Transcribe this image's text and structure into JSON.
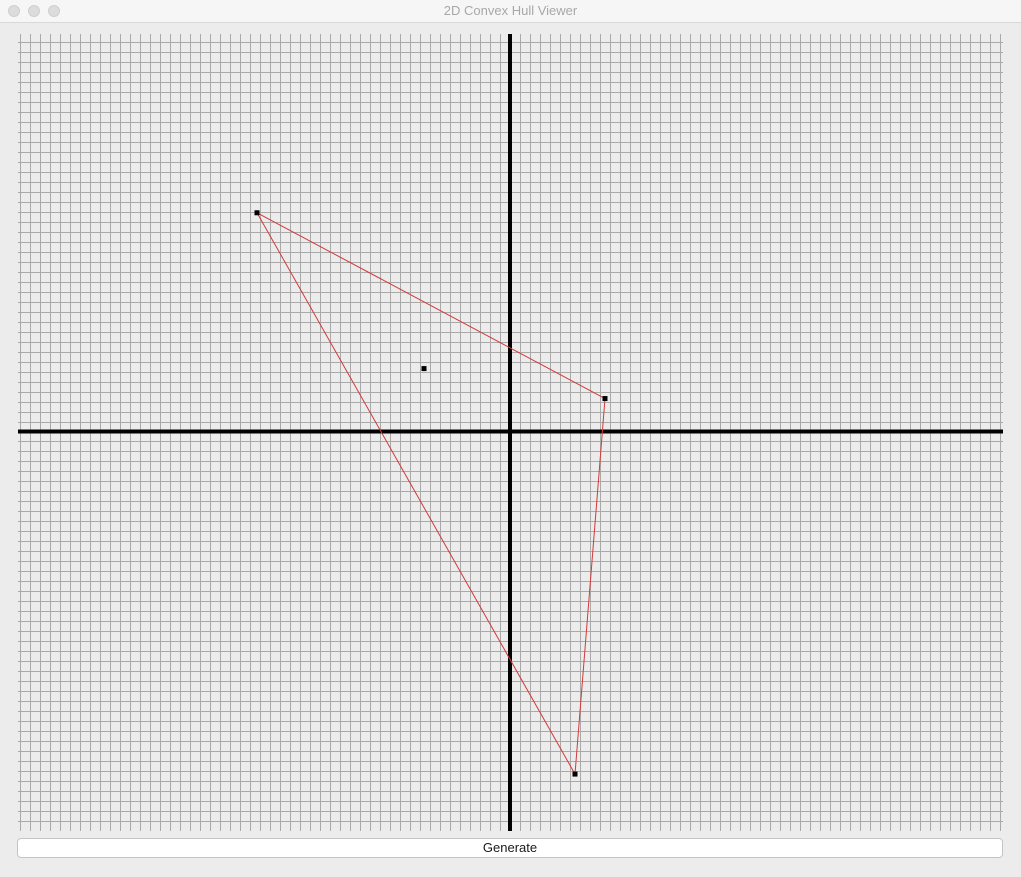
{
  "window": {
    "title": "2D Convex Hull Viewer"
  },
  "toolbar": {
    "generate_label": "Generate"
  },
  "colors": {
    "grid": "#a9a9a9",
    "axis": "#000000",
    "hull": "#d23a3a",
    "point": "#000000",
    "background": "#ececec"
  },
  "chart_data": {
    "type": "scatter",
    "title": "",
    "xlabel": "",
    "ylabel": "",
    "xlim": [
      -49.2,
      49.3
    ],
    "ylim": [
      -40,
      39.8
    ],
    "grid": true,
    "points": [
      {
        "x": -25.3,
        "y": 21.9
      },
      {
        "x": -8.6,
        "y": 6.3
      },
      {
        "x": 9.5,
        "y": 3.3
      },
      {
        "x": 6.5,
        "y": -34.3
      }
    ],
    "hull": [
      {
        "x": -25.3,
        "y": 21.9
      },
      {
        "x": 9.5,
        "y": 3.3
      },
      {
        "x": 6.5,
        "y": -34.3
      }
    ]
  }
}
